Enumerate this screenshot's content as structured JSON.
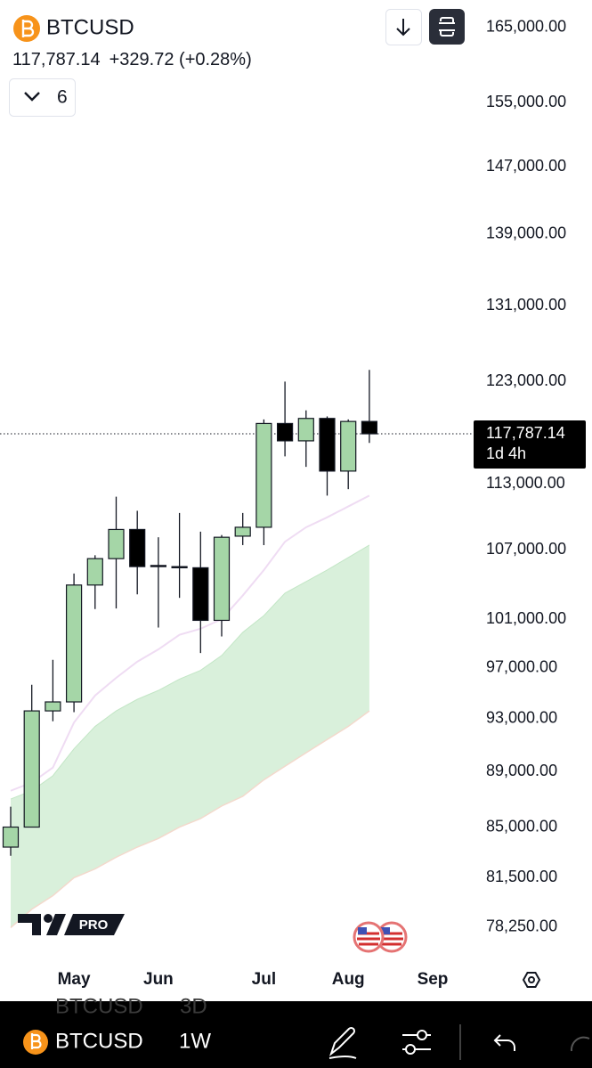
{
  "header": {
    "symbol": "BTCUSD",
    "change": "+329.72 (+0.28%)",
    "interval_count": "6"
  },
  "chart_data": {
    "type": "candlestick",
    "log_scale": true,
    "grid": false,
    "up_color": "#a5d6a7",
    "down_color": "#000000",
    "categories": [
      null,
      null,
      null,
      "May",
      null,
      null,
      null,
      "Jun",
      null,
      null,
      null,
      null,
      "Jul",
      null,
      null,
      null,
      "Aug",
      null,
      null,
      null,
      "Sep"
    ],
    "open": [
      83600,
      85000,
      93600,
      94300,
      103900,
      106200,
      108800,
      105600,
      105500,
      105400,
      100900,
      108200,
      109000,
      118800,
      117100,
      119300,
      114200,
      119000,
      null,
      null,
      null
    ],
    "high": [
      86450,
      95650,
      97650,
      104900,
      106500,
      111800,
      110500,
      108100,
      110300,
      108600,
      108300,
      110300,
      119200,
      123000,
      120100,
      119500,
      119200,
      124200,
      null,
      null,
      null
    ],
    "low": [
      83000,
      85000,
      92800,
      93500,
      101850,
      101900,
      103100,
      100300,
      102800,
      98200,
      99560,
      107400,
      107400,
      115600,
      114600,
      111900,
      112500,
      116900,
      null,
      null,
      null
    ],
    "close": [
      85000,
      93600,
      94300,
      103900,
      106200,
      108800,
      105500,
      105500,
      105400,
      100900,
      108100,
      109000,
      118800,
      117100,
      119300,
      114200,
      119000,
      117787.14,
      null,
      null,
      null
    ],
    "band": {
      "color": "#d9f0db",
      "upper": [
        87000,
        87600,
        88700,
        90700,
        92400,
        93600,
        94500,
        95200,
        96100,
        96800,
        98000,
        99900,
        101300,
        103200,
        104200,
        105200,
        106300,
        107400,
        null,
        null,
        null
      ],
      "lower": [
        78200,
        79400,
        80300,
        81500,
        82100,
        82900,
        83600,
        84200,
        85000,
        85600,
        86500,
        87200,
        88400,
        89400,
        90400,
        91400,
        92400,
        93600,
        null,
        null,
        null
      ]
    },
    "ema": {
      "color": "#efdcf3",
      "values": [
        87600,
        88200,
        89300,
        92700,
        94800,
        96200,
        97500,
        98500,
        99700,
        100200,
        101000,
        103000,
        105200,
        107700,
        109000,
        109900,
        110900,
        111900,
        null,
        null,
        null
      ]
    },
    "ylim": [
      76000,
      168800
    ],
    "yticks": [
      {
        "value": 165000,
        "label": "165,000.00"
      },
      {
        "value": 155000,
        "label": "155,000.00"
      },
      {
        "value": 147000,
        "label": "147,000.00"
      },
      {
        "value": 139000,
        "label": "139,000.00"
      },
      {
        "value": 131000,
        "label": "131,000.00"
      },
      {
        "value": 123000,
        "label": "123,000.00"
      },
      {
        "value": 113000,
        "label": "113,000.00"
      },
      {
        "value": 107000,
        "label": "107,000.00"
      },
      {
        "value": 101000,
        "label": "101,000.00"
      },
      {
        "value": 97000,
        "label": "97,000.00"
      },
      {
        "value": 93000,
        "label": "93,000.00"
      },
      {
        "value": 89000,
        "label": "89,000.00"
      },
      {
        "value": 85000,
        "label": "85,000.00"
      },
      {
        "value": 81500,
        "label": "81,500.00"
      },
      {
        "value": 78250,
        "label": "78,250.00"
      }
    ],
    "last_price": {
      "value": 117787.14,
      "label": "117,787.14"
    },
    "countdown": "1d 4h"
  },
  "logo": {
    "badge": "PRO"
  },
  "toolbar": {
    "ghost_symbol": "BTCUSD",
    "ghost_interval": "3D",
    "symbol": "BTCUSD",
    "interval": "1W"
  }
}
